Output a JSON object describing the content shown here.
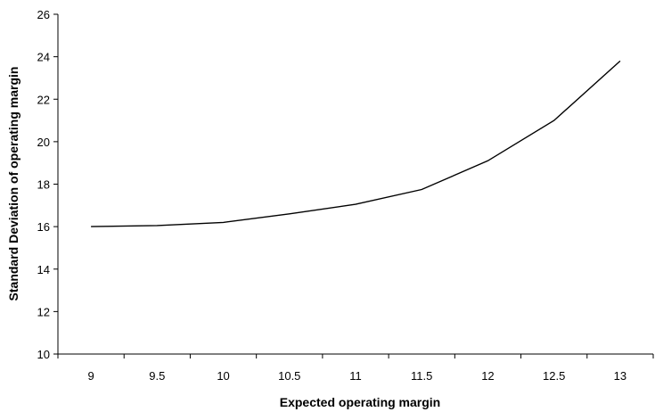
{
  "chart_data": {
    "type": "line",
    "title": "",
    "xlabel": "Expected operating margin",
    "ylabel": "Standard Deviation of operating margin",
    "x": [
      9,
      9.5,
      10,
      10.5,
      11,
      11.5,
      12,
      12.5,
      13
    ],
    "x_tick_labels": [
      "9",
      "9.5",
      "10",
      "10.5",
      "11",
      "11.5",
      "12",
      "12.5",
      "13"
    ],
    "y_tick_labels": [
      "10",
      "12",
      "14",
      "16",
      "18",
      "20",
      "22",
      "24",
      "26"
    ],
    "y_ticks": [
      10,
      12,
      14,
      16,
      18,
      20,
      22,
      24,
      26
    ],
    "ylim": [
      10,
      26
    ],
    "grid": false,
    "legend": "none",
    "series": [
      {
        "values": [
          16.0,
          16.05,
          16.2,
          16.6,
          17.05,
          17.75,
          19.1,
          21.0,
          23.8
        ]
      }
    ],
    "line_color": "#000000"
  }
}
